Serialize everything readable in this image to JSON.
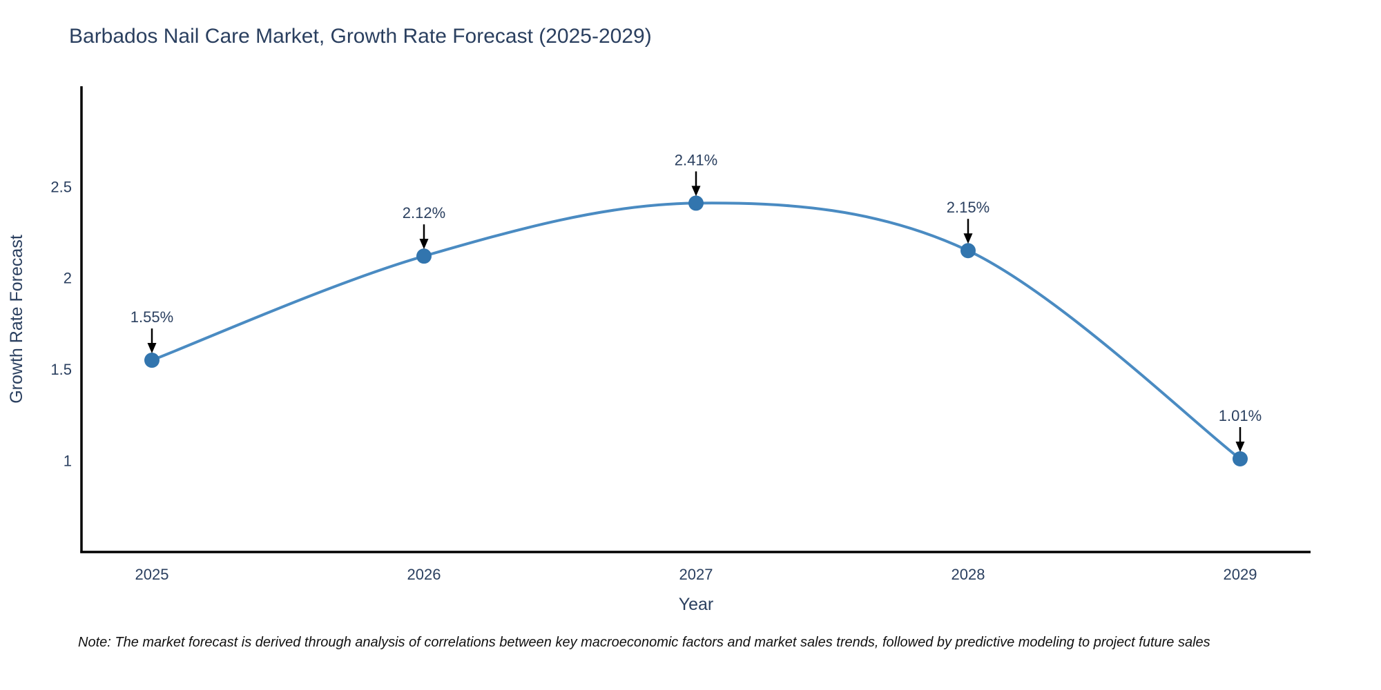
{
  "page": {
    "note": "Note: The market forecast is derived through analysis of correlations between key macroeconomic factors and market sales trends, followed by predictive modeling to project future sales"
  },
  "chart_data": {
    "type": "line",
    "title": "Barbados Nail Care Market, Growth Rate Forecast (2025-2029)",
    "xlabel": "Year",
    "ylabel": "Growth Rate Forecast",
    "categories": [
      "2025",
      "2026",
      "2027",
      "2028",
      "2029"
    ],
    "values": [
      1.55,
      2.12,
      2.41,
      2.15,
      1.01
    ],
    "point_labels": [
      "1.55%",
      "2.12%",
      "2.41%",
      "2.15%",
      "1.01%"
    ],
    "yticks": [
      1,
      1.5,
      2,
      2.5
    ],
    "ytick_labels": [
      "1",
      "1.5",
      "2",
      "2.5"
    ],
    "ylim": [
      0.5,
      3.05
    ],
    "grid": false,
    "legend_position": "none",
    "curve": "spline",
    "colors": {
      "line": "#4a8bc2",
      "marker": "#3275ae",
      "text": "#2a3f5f",
      "axis": "#000000",
      "arrow": "#000000"
    }
  }
}
